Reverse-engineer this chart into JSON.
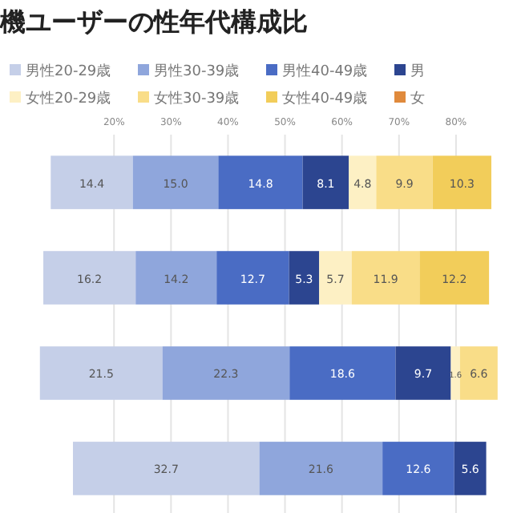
{
  "chart_data": {
    "type": "bar",
    "orientation": "horizontal",
    "title": "機ユーザーの性年代構成比",
    "categories": [
      null,
      null,
      null,
      null
    ],
    "series": [
      {
        "name": "男性20-29歳",
        "color": "#c5cfe8",
        "base": [
          8.9,
          7.6,
          7.0,
          12.8
        ],
        "values": [
          14.4,
          16.2,
          21.5,
          32.7
        ],
        "value_labels": [
          "14.4",
          "16.2",
          "21.5",
          "32.7"
        ]
      },
      {
        "name": "男性30-39歳",
        "color": "#8fa6dc",
        "base": [
          23.3,
          23.8,
          28.5,
          45.5
        ],
        "values": [
          15.0,
          14.2,
          22.3,
          21.6
        ],
        "value_labels": [
          "15.0",
          "14.2",
          "22.3",
          "21.6"
        ]
      },
      {
        "name": "男性40-49歳",
        "color": "#4a6cc4",
        "base": [
          38.3,
          38.0,
          50.8,
          67.1
        ],
        "values": [
          14.8,
          12.7,
          18.6,
          12.6
        ],
        "value_labels": [
          "14.8",
          "12.7",
          "18.6",
          "12.6"
        ]
      },
      {
        "name": "男",
        "color": "#2c4590",
        "base": [
          53.1,
          50.7,
          69.4,
          79.7
        ],
        "values": [
          8.1,
          5.3,
          9.7,
          5.6
        ],
        "value_labels": [
          "8.1",
          "5.3",
          "9.7",
          "5.6"
        ]
      },
      {
        "name": "女性20-29歳",
        "color": "#fdf0c4",
        "base": [
          61.2,
          56.0,
          79.1,
          null
        ],
        "values": [
          4.8,
          5.7,
          1.6,
          null
        ],
        "value_labels": [
          "4.8",
          "5.7",
          "1.6",
          null
        ]
      },
      {
        "name": "女性30-39歳",
        "color": "#f9dd88",
        "base": [
          66.0,
          61.7,
          80.7,
          null
        ],
        "values": [
          9.9,
          11.9,
          6.6,
          null
        ],
        "value_labels": [
          "9.9",
          "11.9",
          "6.6",
          null
        ]
      },
      {
        "name": "女性40-49歳",
        "color": "#f2cd5a",
        "base": [
          75.9,
          73.6,
          null,
          null
        ],
        "values": [
          10.3,
          12.2,
          null,
          null
        ],
        "value_labels": [
          "10.3",
          "12.2",
          null,
          null
        ]
      },
      {
        "name": "女",
        "color": "#e08a3c",
        "values": [
          null,
          null,
          null,
          null
        ]
      }
    ],
    "xlim": [
      0,
      90
    ],
    "xticks": [
      {
        "value": 20,
        "label": "20%"
      },
      {
        "value": 30,
        "label": "30%"
      },
      {
        "value": 40,
        "label": "40%"
      },
      {
        "value": 50,
        "label": "50%"
      },
      {
        "value": 60,
        "label": "60%"
      },
      {
        "value": 70,
        "label": "70%"
      },
      {
        "value": 80,
        "label": "80%"
      }
    ],
    "grid": "x",
    "legend": "top"
  }
}
